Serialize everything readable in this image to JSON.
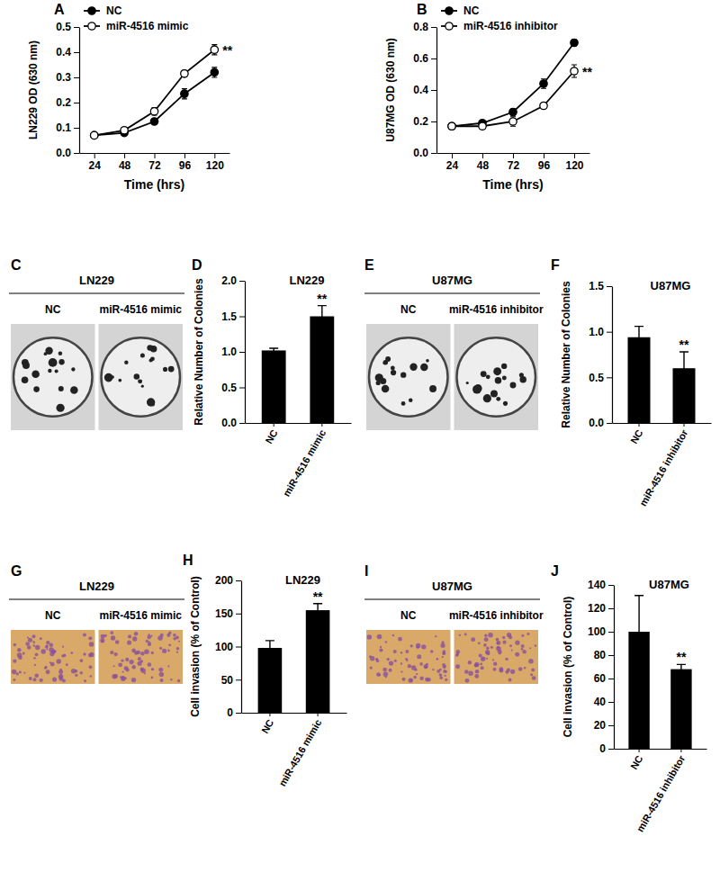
{
  "chart_data": [
    {
      "type": "line",
      "panel": "A",
      "ylabel": "LN229 OD (630 nm)",
      "xlabel": "Time (hrs)",
      "x": [
        24,
        48,
        72,
        96,
        120
      ],
      "xlim": [
        12,
        132
      ],
      "xticks": [
        24,
        48,
        72,
        96,
        120
      ],
      "ylim": [
        0,
        0.5
      ],
      "yticks": [
        {
          "value": 0,
          "label": "0.0"
        },
        0.1,
        0.2,
        0.3,
        0.4,
        0.5
      ],
      "legend": "upper left",
      "annotation": "**",
      "series": [
        {
          "name": "NC",
          "color": "#000000",
          "marker": "filled",
          "values": [
            0.07,
            0.08,
            0.125,
            0.235,
            0.32
          ],
          "errors": [
            0.005,
            0.01,
            0.008,
            0.02,
            0.02
          ]
        },
        {
          "name": "miR-4516 mimic",
          "color": "#000000",
          "marker": "open",
          "values": [
            0.07,
            0.09,
            0.165,
            0.315,
            0.41
          ],
          "errors": [
            0.005,
            0.01,
            0.015,
            0.012,
            0.02
          ]
        }
      ]
    },
    {
      "type": "line",
      "panel": "B",
      "ylabel": "U87MG OD (630 nm)",
      "xlabel": "Time (hrs)",
      "x": [
        24,
        48,
        72,
        96,
        120
      ],
      "xlim": [
        12,
        132
      ],
      "xticks": [
        24,
        48,
        72,
        96,
        120
      ],
      "ylim": [
        0,
        0.8
      ],
      "yticks": [
        {
          "value": 0,
          "label": "0.0"
        },
        0.2,
        0.4,
        0.6,
        0.8
      ],
      "legend": "upper left",
      "annotation": "**",
      "series": [
        {
          "name": "NC",
          "color": "#000000",
          "marker": "filled",
          "values": [
            0.17,
            0.19,
            0.26,
            0.44,
            0.7
          ],
          "errors": [
            0.01,
            0.01,
            0.02,
            0.03,
            0.02
          ]
        },
        {
          "name": "miR-4516 inhibitor",
          "color": "#000000",
          "marker": "open",
          "values": [
            0.17,
            0.17,
            0.2,
            0.3,
            0.52
          ],
          "errors": [
            0.01,
            0.01,
            0.03,
            0.01,
            0.04
          ]
        }
      ]
    },
    {
      "type": "image",
      "panel": "C",
      "title": "LN229",
      "labels": [
        "NC",
        "miR-4516 mimic"
      ]
    },
    {
      "type": "bar",
      "panel": "D",
      "title": "LN229",
      "ylabel": "Relative Number of Colonies",
      "categories": [
        "NC",
        "miR-4516 mimic"
      ],
      "values": [
        1.02,
        1.5
      ],
      "errors": [
        0.03,
        0.15
      ],
      "color": "#000000",
      "ylim": [
        0,
        2
      ],
      "yticks": [
        {
          "value": 0,
          "label": "0.0"
        },
        0.5,
        {
          "value": 1,
          "label": "1.0"
        },
        1.5,
        {
          "value": 2,
          "label": "2.0"
        }
      ],
      "annotation": "**"
    },
    {
      "type": "image",
      "panel": "E",
      "title": "U87MG",
      "labels": [
        "NC",
        "miR-4516 inhibitor"
      ]
    },
    {
      "type": "bar",
      "panel": "F",
      "title": "U87MG",
      "ylabel": "Relative Number of Colonies",
      "categories": [
        "NC",
        "miR-4516 inhibitor"
      ],
      "values": [
        0.94,
        0.6
      ],
      "errors": [
        0.12,
        0.18
      ],
      "color": "#000000",
      "ylim": [
        0,
        1.5
      ],
      "yticks": [
        {
          "value": 0,
          "label": "0.0"
        },
        0.5,
        {
          "value": 1,
          "label": "1.0"
        },
        1.5
      ],
      "annotation": "**"
    },
    {
      "type": "image",
      "panel": "G",
      "title": "LN229",
      "labels": [
        "NC",
        "miR-4516 mimic"
      ]
    },
    {
      "type": "bar",
      "panel": "H",
      "title": "LN229",
      "ylabel": "Cell invasion (% of Control)",
      "categories": [
        "NC",
        "miR-4516 mimic"
      ],
      "values": [
        98,
        155
      ],
      "errors": [
        11,
        10
      ],
      "color": "#000000",
      "ylim": [
        0,
        200
      ],
      "yticks": [
        0,
        50,
        100,
        150,
        200
      ],
      "annotation": "**"
    },
    {
      "type": "image",
      "panel": "I",
      "title": "U87MG",
      "labels": [
        "NC",
        "miR-4516 inhibitor"
      ]
    },
    {
      "type": "bar",
      "panel": "J",
      "title": "U87MG",
      "ylabel": "Cell invasion (% of Control)",
      "categories": [
        "NC",
        "miR-4516 inhibitor"
      ],
      "values": [
        100,
        68
      ],
      "errors": [
        31,
        4
      ],
      "color": "#000000",
      "ylim": [
        0,
        140
      ],
      "yticks": [
        0,
        20,
        40,
        60,
        80,
        100,
        120,
        140
      ],
      "annotation": "**"
    }
  ]
}
